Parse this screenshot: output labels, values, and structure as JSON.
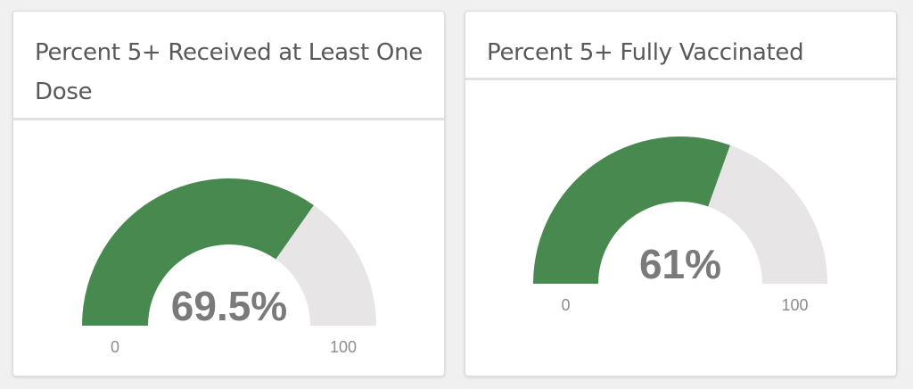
{
  "colors": {
    "filled": "#47894f",
    "track": "#e7e5e6"
  },
  "chart_data": [
    {
      "type": "gauge",
      "title": "Percent 5+ Received at Least One Dose",
      "value": 69.5,
      "value_label": "69.5%",
      "min": 0,
      "max": 100,
      "min_label": "0",
      "max_label": "100"
    },
    {
      "type": "gauge",
      "title": "Percent 5+ Fully Vaccinated",
      "value": 61,
      "value_label": "61%",
      "min": 0,
      "max": 100,
      "min_label": "0",
      "max_label": "100"
    }
  ]
}
